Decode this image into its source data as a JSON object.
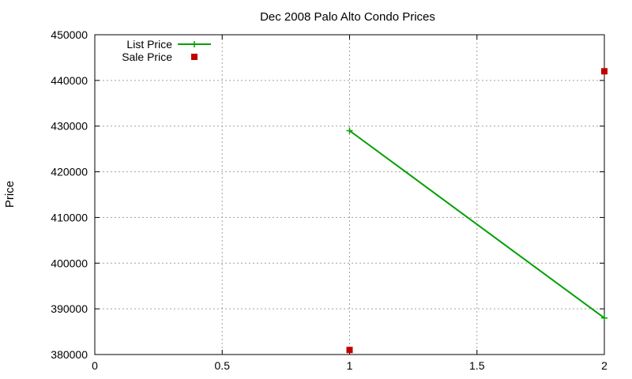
{
  "chart_data": {
    "type": "line",
    "title": "Dec 2008 Palo Alto Condo Prices",
    "xlabel": "",
    "ylabel": "Price",
    "xlim": [
      0,
      2
    ],
    "ylim": [
      380000,
      450000
    ],
    "x_ticks": [
      0,
      0.5,
      1,
      1.5,
      2
    ],
    "y_ticks": [
      380000,
      390000,
      400000,
      410000,
      420000,
      430000,
      440000,
      450000
    ],
    "grid": true,
    "legend_position": "top-left",
    "series": [
      {
        "name": "List Price",
        "style": "line-points",
        "marker": "plus",
        "color": "#00a000",
        "points": [
          [
            1,
            429000
          ],
          [
            2,
            388000
          ]
        ]
      },
      {
        "name": "Sale Price",
        "style": "points",
        "marker": "square",
        "color": "#c00000",
        "points": [
          [
            1,
            381000
          ],
          [
            2,
            442000
          ]
        ]
      }
    ]
  }
}
